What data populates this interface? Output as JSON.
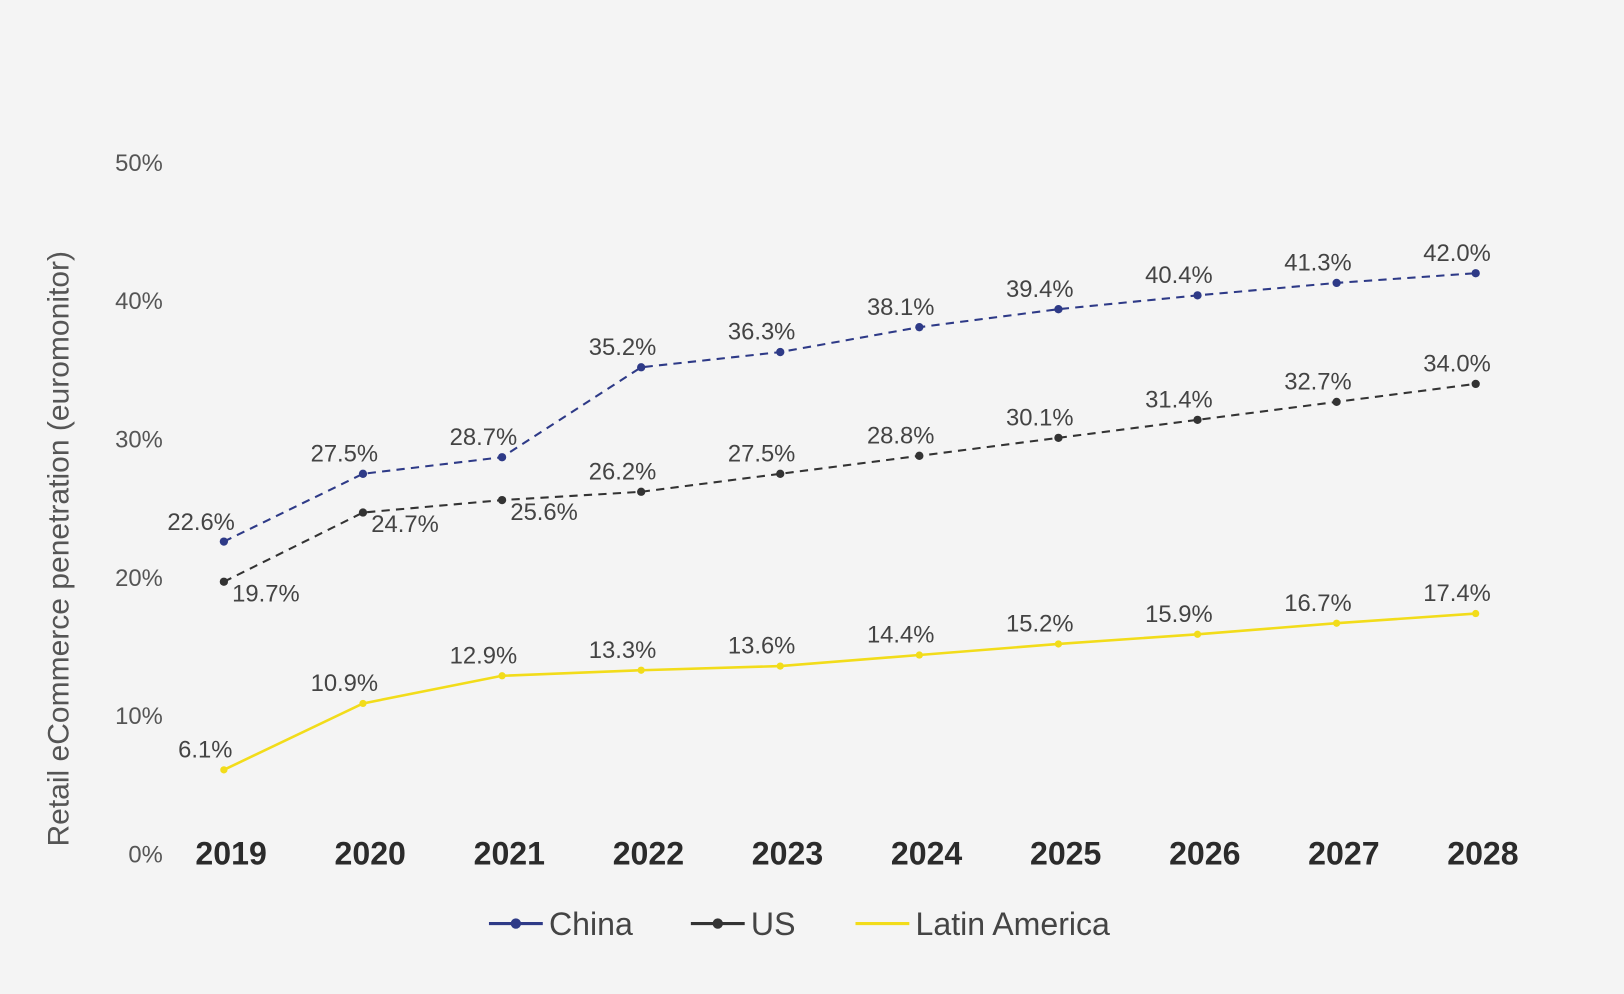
{
  "chart_data": {
    "type": "line",
    "title": "",
    "xlabel": "",
    "ylabel": "Retail eCommerce penetration (euromonitor)",
    "ylim": [
      0,
      50
    ],
    "yticks": [
      "0%",
      "10%",
      "20%",
      "30%",
      "40%",
      "50%"
    ],
    "grid": false,
    "legend_position": "bottom",
    "categories": [
      "2019",
      "2020",
      "2021",
      "2022",
      "2023",
      "2024",
      "2025",
      "2026",
      "2027",
      "2028"
    ],
    "series": [
      {
        "name": "China",
        "color": "#2e3a87",
        "style": "dashed",
        "markers": true,
        "values": [
          22.6,
          27.5,
          28.7,
          35.2,
          36.3,
          38.1,
          39.4,
          40.4,
          41.3,
          42.0
        ],
        "labels": [
          "22.6%",
          "27.5%",
          "28.7%",
          "35.2%",
          "36.3%",
          "38.1%",
          "39.4%",
          "40.4%",
          "41.3%",
          "42.0%"
        ]
      },
      {
        "name": "US",
        "color": "#333333",
        "style": "dashed",
        "markers": true,
        "values": [
          19.7,
          24.7,
          25.6,
          26.2,
          27.5,
          28.8,
          30.1,
          31.4,
          32.7,
          34.0
        ],
        "labels": [
          "19.7%",
          "24.7%",
          "25.6%",
          "26.2%",
          "27.5%",
          "28.8%",
          "30.1%",
          "31.4%",
          "32.7%",
          "34.0%"
        ]
      },
      {
        "name": "Latin America",
        "color": "#f2dc1a",
        "style": "solid",
        "markers": false,
        "values": [
          6.1,
          10.9,
          12.9,
          13.3,
          13.6,
          14.4,
          15.2,
          15.9,
          16.7,
          17.4
        ],
        "labels": [
          "6.1%",
          "10.9%",
          "12.9%",
          "13.3%",
          "13.6%",
          "14.4%",
          "15.2%",
          "15.9%",
          "16.7%",
          "17.4%"
        ]
      }
    ]
  }
}
